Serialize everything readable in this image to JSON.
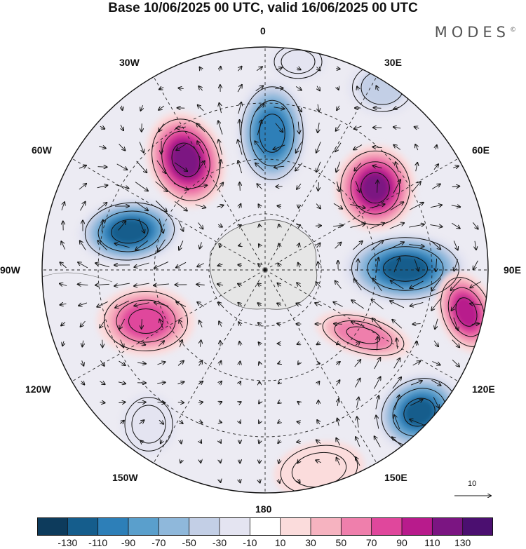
{
  "title": "Base 10/06/2025 00 UTC, valid 16/06/2025 00 UTC",
  "brand": "MODES",
  "brand_mark": "©",
  "longitude_labels": [
    "0",
    "30E",
    "60E",
    "90E",
    "120E",
    "150E",
    "180",
    "150W",
    "120W",
    "90W",
    "60W",
    "30W"
  ],
  "reference_vector_label": "10",
  "colorbar": {
    "tick_labels": [
      "-130",
      "-110",
      "-90",
      "-70",
      "-50",
      "-30",
      "-10",
      "10",
      "30",
      "50",
      "70",
      "90",
      "110",
      "130"
    ],
    "colors": [
      "#0d3b5c",
      "#155d8c",
      "#2d7fb8",
      "#5a9fcc",
      "#8fb8db",
      "#c3cfe6",
      "#e4e4f1",
      "#ffffff",
      "#fbdcdc",
      "#f6b3c0",
      "#ef7fac",
      "#e0479c",
      "#b81b8c",
      "#7b1582",
      "#4b0f70"
    ]
  },
  "anomaly_centers": [
    {
      "sign": "negative",
      "strength": -115
    },
    {
      "sign": "positive",
      "strength": 125
    },
    {
      "sign": "positive",
      "strength": 120
    },
    {
      "sign": "negative",
      "strength": -125
    },
    {
      "sign": "positive",
      "strength": 90
    },
    {
      "sign": "negative",
      "strength": -125
    },
    {
      "sign": "positive",
      "strength": 75
    },
    {
      "sign": "negative",
      "strength": -40
    },
    {
      "sign": "positive",
      "strength": 105
    },
    {
      "sign": "negative",
      "strength": -120
    },
    {
      "sign": "negative",
      "strength": -30
    },
    {
      "sign": "positive",
      "strength": 30
    },
    {
      "sign": "negative",
      "strength": -20
    }
  ]
}
